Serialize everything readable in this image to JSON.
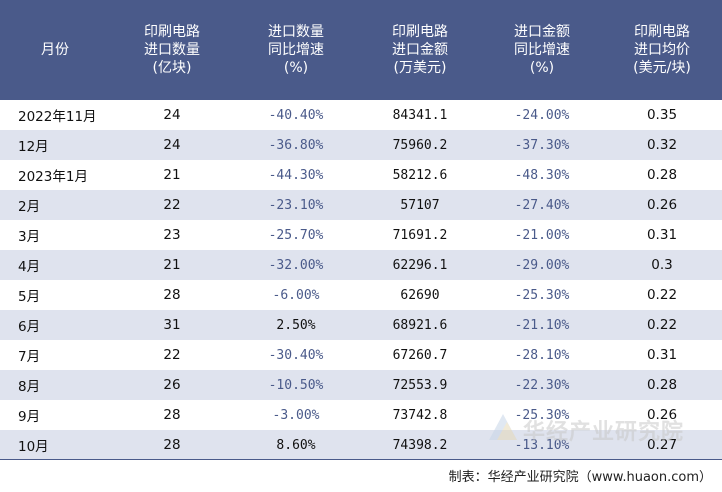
{
  "columns": [
    [
      "月份"
    ],
    [
      "印刷电路",
      "进口数量",
      "(亿块)"
    ],
    [
      "进口数量",
      "同比增速",
      "(%)"
    ],
    [
      "印刷电路",
      "进口金额",
      "(万美元)"
    ],
    [
      "进口金额",
      "同比增速",
      "(%)"
    ],
    [
      "印刷电路",
      "进口均价",
      "(美元/块)"
    ]
  ],
  "rows": [
    {
      "month": "2022年11月",
      "qty": "24",
      "qty_growth": "-40.40%",
      "amount": "84341.1",
      "amount_growth": "-24.00%",
      "price": "0.35"
    },
    {
      "month": "12月",
      "qty": "24",
      "qty_growth": "-36.80%",
      "amount": "75960.2",
      "amount_growth": "-37.30%",
      "price": "0.32"
    },
    {
      "month": "2023年1月",
      "qty": "21",
      "qty_growth": "-44.30%",
      "amount": "58212.6",
      "amount_growth": "-48.30%",
      "price": "0.28"
    },
    {
      "month": "2月",
      "qty": "22",
      "qty_growth": "-23.10%",
      "amount": "57107",
      "amount_growth": "-27.40%",
      "price": "0.26"
    },
    {
      "month": "3月",
      "qty": "23",
      "qty_growth": "-25.70%",
      "amount": "71691.2",
      "amount_growth": "-21.00%",
      "price": "0.31"
    },
    {
      "month": "4月",
      "qty": "21",
      "qty_growth": "-32.00%",
      "amount": "62296.1",
      "amount_growth": "-29.00%",
      "price": "0.3"
    },
    {
      "month": "5月",
      "qty": "28",
      "qty_growth": "-6.00%",
      "amount": "62690",
      "amount_growth": "-25.30%",
      "price": "0.22"
    },
    {
      "month": "6月",
      "qty": "31",
      "qty_growth": "2.50%",
      "amount": "68921.6",
      "amount_growth": "-21.10%",
      "price": "0.22"
    },
    {
      "month": "7月",
      "qty": "22",
      "qty_growth": "-30.40%",
      "amount": "67260.7",
      "amount_growth": "-28.10%",
      "price": "0.31"
    },
    {
      "month": "8月",
      "qty": "26",
      "qty_growth": "-10.50%",
      "amount": "72553.9",
      "amount_growth": "-22.30%",
      "price": "0.28"
    },
    {
      "month": "9月",
      "qty": "28",
      "qty_growth": "-3.00%",
      "amount": "73742.8",
      "amount_growth": "-25.30%",
      "price": "0.26"
    },
    {
      "month": "10月",
      "qty": "28",
      "qty_growth": "8.60%",
      "amount": "74398.2",
      "amount_growth": "-13.10%",
      "price": "0.27"
    }
  ],
  "footer": "制表：华经产业研究院（www.huaon.com）",
  "watermark": "华经产业研究院",
  "colors": {
    "header_bg": "#4a5a8a",
    "stripe": "#dfe3ee",
    "negative_text": "#4a5a8a"
  }
}
